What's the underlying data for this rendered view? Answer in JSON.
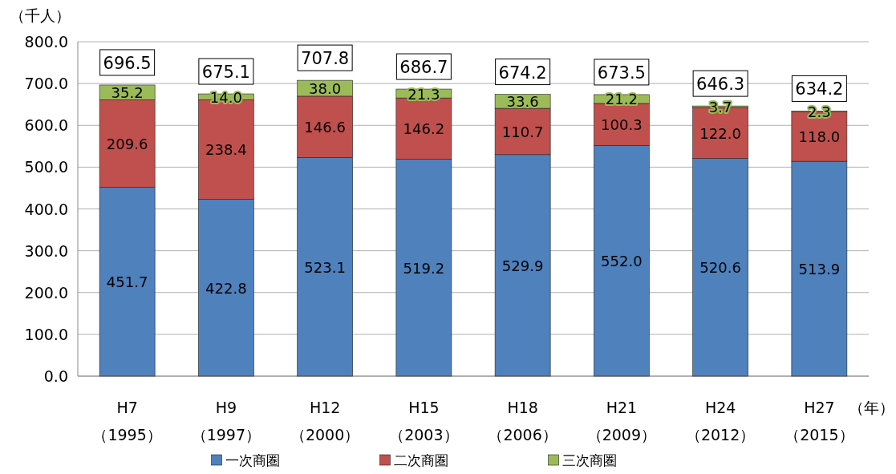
{
  "chart_data": {
    "type": "bar",
    "stacked": true,
    "ylabel": "（千人）",
    "xlabel": "（年）",
    "categories": [
      "H7\n（1995）",
      "H9\n（1997）",
      "H12\n（2000）",
      "H15\n（2003）",
      "H18\n（2006）",
      "H21\n（2009）",
      "H24\n（2012）",
      "H27\n（2015）"
    ],
    "series": [
      {
        "name": "一次商圏",
        "color": "#4f81bd",
        "values": [
          451.7,
          422.8,
          523.1,
          519.2,
          529.9,
          552.0,
          520.6,
          513.9
        ],
        "value_labels": [
          "451.7",
          "422.8",
          "523.1",
          "519.2",
          "529.9",
          "552.0",
          "520.6",
          "513.9"
        ]
      },
      {
        "name": "二次商圏",
        "color": "#c0504d",
        "values": [
          209.6,
          238.4,
          146.6,
          146.2,
          110.7,
          100.3,
          122.0,
          118.0
        ],
        "value_labels": [
          "209.6",
          "238.4",
          "146.6",
          "146.2",
          "110.7",
          "100.3",
          "122.0",
          "118.0"
        ]
      },
      {
        "name": "三次商圏",
        "color": "#9bbb59",
        "values": [
          35.2,
          14.0,
          38.0,
          21.3,
          33.6,
          21.2,
          3.7,
          2.3
        ],
        "value_labels": [
          "35.2",
          "14.0",
          "38.0",
          "21.3",
          "33.6",
          "21.2",
          "3.7",
          "2.3"
        ]
      }
    ],
    "totals": [
      "696.5",
      "675.1",
      "707.8",
      "686.7",
      "674.2",
      "673.5",
      "646.3",
      "634.2"
    ],
    "ylim": [
      0,
      800
    ],
    "yticks": [
      {
        "value": 0,
        "label": "0.0"
      },
      {
        "value": 100,
        "label": "100.0"
      },
      {
        "value": 200,
        "label": "200.0"
      },
      {
        "value": 300,
        "label": "300.0"
      },
      {
        "value": 400,
        "label": "400.0"
      },
      {
        "value": 500,
        "label": "500.0"
      },
      {
        "value": 600,
        "label": "600.0"
      },
      {
        "value": 700,
        "label": "700.0"
      },
      {
        "value": 800,
        "label": "800.0"
      }
    ],
    "grid": "y",
    "legend": "bottom"
  }
}
